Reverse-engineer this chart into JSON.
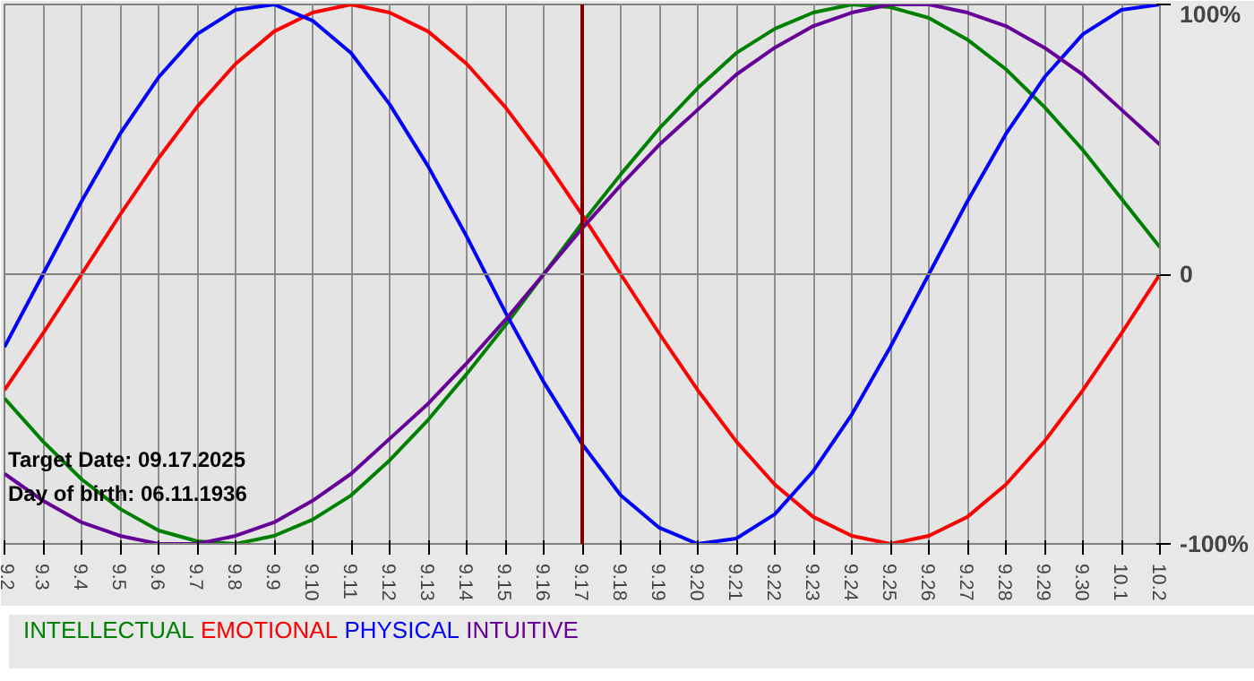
{
  "chart_data": {
    "type": "line",
    "categories": [
      "9.2",
      "9.3",
      "9.4",
      "9.5",
      "9.6",
      "9.7",
      "9.8",
      "9.9",
      "9.10",
      "9.11",
      "9.12",
      "9.13",
      "9.14",
      "9.15",
      "9.16",
      "9.17",
      "9.18",
      "9.19",
      "9.20",
      "9.21",
      "9.22",
      "9.23",
      "9.24",
      "9.25",
      "9.26",
      "9.27",
      "9.28",
      "9.29",
      "9.30",
      "10.1",
      "10.2"
    ],
    "series": [
      {
        "name": "INTELLECTUAL",
        "color": "#008000",
        "values": [
          -46,
          -62,
          -76,
          -87,
          -95,
          -99,
          -100,
          -97,
          -91,
          -82,
          -69,
          -54,
          -37,
          -19,
          0,
          19,
          37,
          54,
          69,
          82,
          91,
          97,
          100,
          99,
          95,
          87,
          76,
          62,
          46,
          28,
          10
        ]
      },
      {
        "name": "EMOTIONAL",
        "color": "#ff0000",
        "values": [
          -43,
          -22,
          0,
          22,
          43,
          62,
          78,
          90,
          97,
          100,
          97,
          90,
          78,
          62,
          43,
          22,
          0,
          -22,
          -43,
          -62,
          -78,
          -90,
          -97,
          -100,
          -97,
          -90,
          -78,
          -62,
          -43,
          -22,
          0
        ]
      },
      {
        "name": "PHYSICAL",
        "color": "#0000ff",
        "values": [
          -27,
          0,
          27,
          52,
          73,
          89,
          98,
          100,
          94,
          82,
          63,
          40,
          14,
          -14,
          -40,
          -63,
          -82,
          -94,
          -100,
          -98,
          -89,
          -73,
          -52,
          -27,
          0,
          27,
          52,
          73,
          89,
          98,
          100
        ]
      },
      {
        "name": "INTUITIVE",
        "color": "#660099",
        "values": [
          -74,
          -84,
          -92,
          -97,
          -100,
          -100,
          -97,
          -92,
          -84,
          -74,
          -61,
          -48,
          -33,
          -17,
          0,
          17,
          33,
          48,
          61,
          74,
          84,
          92,
          97,
          100,
          100,
          97,
          92,
          84,
          74,
          61,
          48
        ]
      }
    ],
    "ylim": [
      -100,
      100
    ],
    "yticks": [
      {
        "value": 100,
        "label": "100%"
      },
      0,
      {
        "value": -100,
        "label": "-100%"
      }
    ],
    "ref_lines": [
      {
        "axis": "x",
        "value": "9.17",
        "label": null,
        "color": "#800000"
      },
      {
        "axis": "y",
        "value": 0,
        "label": null,
        "color": "#808080"
      }
    ],
    "annotations": [
      "Target Date: 09.17.2025",
      "Day of birth: 06.11.1936"
    ],
    "grid": "x",
    "line_style": "solid",
    "marker": "none"
  }
}
